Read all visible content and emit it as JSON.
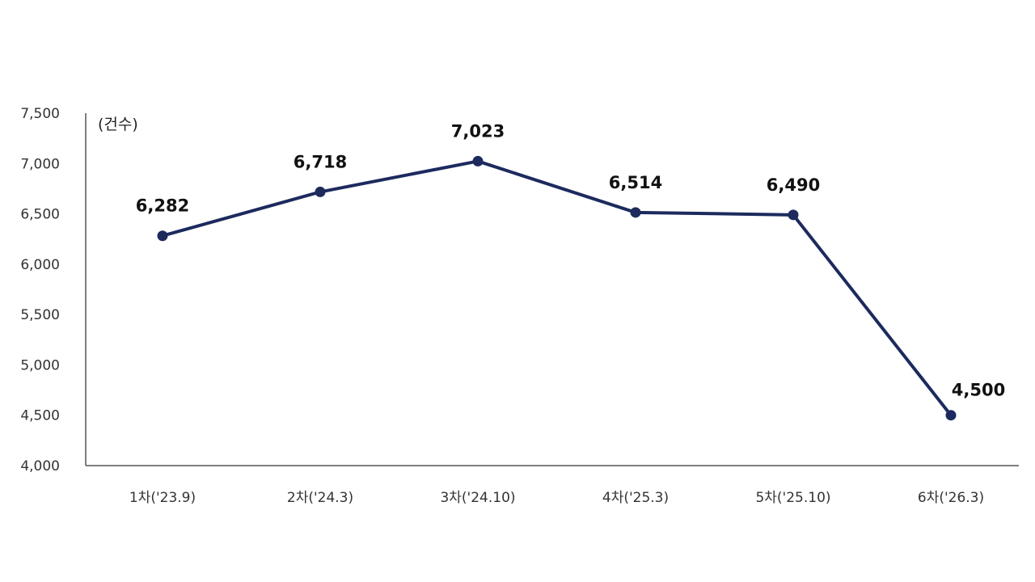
{
  "chart_data": {
    "type": "line",
    "title": "",
    "unit_label": "(건수)",
    "xlabel": "",
    "ylabel": "",
    "categories": [
      "1차('23.9)",
      "2차('24.3)",
      "3차('24.10)",
      "4차('25.3)",
      "5차('25.10)",
      "6차('26.3)"
    ],
    "series": [
      {
        "values": [
          6282,
          6718,
          7023,
          6514,
          6490,
          4500
        ],
        "labels": [
          "6,282",
          "6,718",
          "7,023",
          "6,514",
          "6,490",
          "4,500"
        ],
        "color": "#1c2a5e"
      }
    ],
    "ylim": [
      4000,
      7500
    ],
    "yticks": [
      4000,
      4500,
      5000,
      5500,
      6000,
      6500,
      7000,
      7500
    ],
    "ytick_labels": [
      "4,000",
      "4,500",
      "5,000",
      "5,500",
      "6,000",
      "6,500",
      "7,000",
      "7,500"
    ],
    "grid": false,
    "legend": "none"
  }
}
